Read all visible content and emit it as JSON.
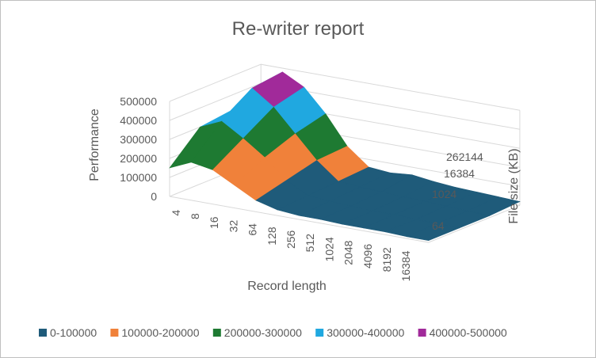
{
  "chart_data": {
    "type": "surface",
    "title": "Re-writer report",
    "zlabel": "Performance",
    "xlabel": "Record length",
    "ylabel": "File size (KB)",
    "zlim": [
      0,
      500000
    ],
    "z_ticks": [
      "0",
      "100000",
      "200000",
      "300000",
      "400000",
      "500000"
    ],
    "x_ticks": [
      "4",
      "8",
      "16",
      "32",
      "64",
      "128",
      "256",
      "512",
      "1024",
      "2048",
      "4096",
      "8192",
      "16384"
    ],
    "y_ticks": [
      "64",
      "1024",
      "16384",
      "262144"
    ],
    "legend": [
      {
        "label": "0-100000",
        "color": "#1f5b7a"
      },
      {
        "label": "100000-200000",
        "color": "#f0813a"
      },
      {
        "label": "200000-300000",
        "color": "#1e7a32"
      },
      {
        "label": "300000-400000",
        "color": "#20a8e0"
      },
      {
        "label": "400000-500000",
        "color": "#a12a9a"
      }
    ],
    "legend_position": "bottom",
    "surface_profile": {
      "record_length": [
        "4",
        "8",
        "16",
        "32",
        "64",
        "128",
        "256",
        "512",
        "1024",
        "2048",
        "4096",
        "8192",
        "16384"
      ],
      "file_size_rows": [
        "64",
        "1024",
        "16384",
        "262144"
      ],
      "values": [
        [
          150000,
          200000,
          180000,
          120000,
          60000,
          30000,
          20000,
          20000,
          15000,
          15000,
          15000,
          10000,
          10000
        ],
        [
          300000,
          350000,
          280000,
          200000,
          100000,
          40000,
          30000,
          25000,
          20000,
          20000,
          15000,
          15000,
          10000
        ],
        [
          320000,
          460000,
          380000,
          260000,
          140000,
          50000,
          40000,
          35000,
          30000,
          25000,
          20000,
          15000,
          10000
        ],
        [
          300000,
          480000,
          420000,
          300000,
          150000,
          60000,
          50000,
          60000,
          45000,
          35000,
          30000,
          25000,
          20000
        ]
      ]
    }
  }
}
